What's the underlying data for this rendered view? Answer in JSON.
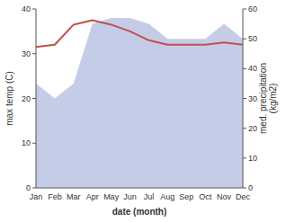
{
  "chart_data": {
    "type": "line",
    "categories": [
      "Jan",
      "Feb",
      "Mar",
      "Apr",
      "May",
      "Jun",
      "Jul",
      "Aug",
      "Sep",
      "Oct",
      "Nov",
      "Dec"
    ],
    "xlabel": "date (month)",
    "ylabel": "max temp (C)",
    "y2label": "med. precipitation\n(kg/m2)",
    "ylim": [
      0,
      40
    ],
    "yticks": [
      0,
      10,
      20,
      30,
      40
    ],
    "y2lim": [
      0,
      60
    ],
    "y2ticks": [
      0,
      10,
      20,
      30,
      40,
      50,
      60
    ],
    "grid": false,
    "series": [
      {
        "type": "area",
        "axis": "y2",
        "color": "#c5cce8",
        "values": [
          35,
          30,
          35,
          55,
          57,
          57,
          55,
          50,
          50,
          50,
          55,
          50
        ]
      },
      {
        "type": "line",
        "color": "#c0504d",
        "values": [
          31.5,
          32.0,
          36.5,
          37.5,
          36.5,
          35.0,
          33.0,
          32.0,
          32.0,
          32.0,
          32.5,
          32.0
        ]
      }
    ]
  }
}
